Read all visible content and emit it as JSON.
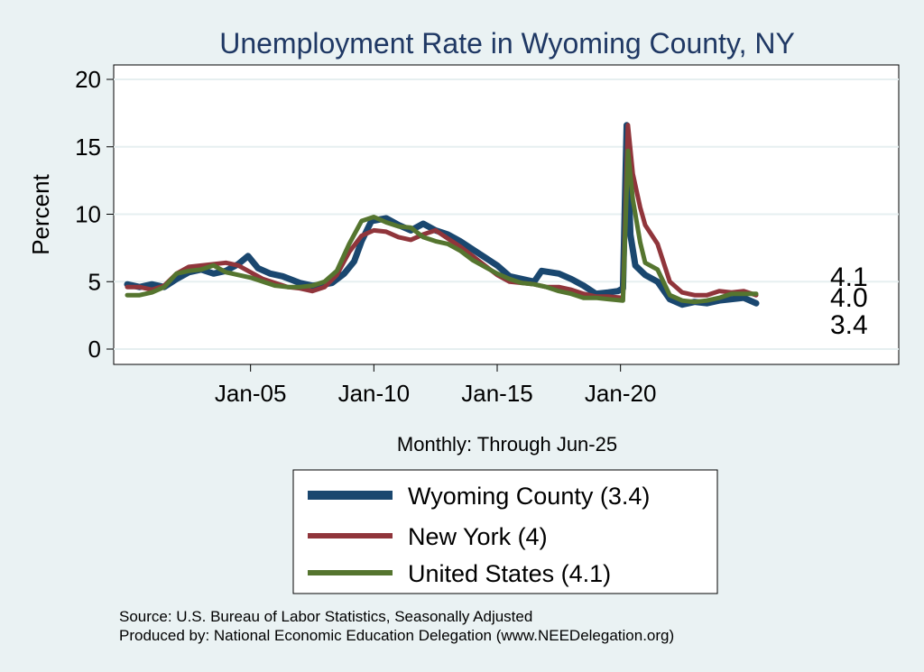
{
  "chart_data": {
    "type": "line",
    "title": "Unemployment Rate in Wyoming  County, NY",
    "ylabel": "Percent",
    "xlabel": "Monthly: Through Jun-25",
    "ylim": [
      0,
      20
    ],
    "yticks": [
      0,
      5,
      10,
      15,
      20
    ],
    "xlim": [
      2000.0,
      2028.5
    ],
    "xticks": [
      {
        "label": "Jan-05",
        "value": 2005.0
      },
      {
        "label": "Jan-10",
        "value": 2010.0
      },
      {
        "label": "Jan-15",
        "value": 2015.0
      },
      {
        "label": "Jan-20",
        "value": 2020.0
      }
    ],
    "grid": true,
    "legend_position": "bottom",
    "series": [
      {
        "name": "Wyoming  County (3.4)",
        "color": "#1a476f",
        "end_label": "3.4",
        "points": [
          [
            2000.0,
            4.8
          ],
          [
            2000.5,
            4.6
          ],
          [
            2001.0,
            4.8
          ],
          [
            2001.5,
            4.6
          ],
          [
            2002.0,
            5.2
          ],
          [
            2002.5,
            5.7
          ],
          [
            2003.0,
            5.9
          ],
          [
            2003.5,
            5.6
          ],
          [
            2004.0,
            5.8
          ],
          [
            2004.5,
            6.3
          ],
          [
            2004.9,
            6.9
          ],
          [
            2005.3,
            6.0
          ],
          [
            2005.8,
            5.6
          ],
          [
            2006.3,
            5.4
          ],
          [
            2007.0,
            4.9
          ],
          [
            2007.5,
            4.7
          ],
          [
            2008.0,
            4.8
          ],
          [
            2008.3,
            4.9
          ],
          [
            2008.8,
            5.6
          ],
          [
            2009.2,
            6.5
          ],
          [
            2009.5,
            8.0
          ],
          [
            2009.9,
            9.5
          ],
          [
            2010.5,
            9.7
          ],
          [
            2011.0,
            9.2
          ],
          [
            2011.5,
            8.8
          ],
          [
            2012.0,
            9.3
          ],
          [
            2012.5,
            8.8
          ],
          [
            2013.0,
            8.5
          ],
          [
            2013.5,
            8.0
          ],
          [
            2014.0,
            7.4
          ],
          [
            2014.5,
            6.8
          ],
          [
            2015.0,
            6.2
          ],
          [
            2015.5,
            5.4
          ],
          [
            2016.0,
            5.2
          ],
          [
            2016.5,
            5.0
          ],
          [
            2016.8,
            5.8
          ],
          [
            2017.5,
            5.6
          ],
          [
            2018.0,
            5.2
          ],
          [
            2018.5,
            4.7
          ],
          [
            2019.0,
            4.1
          ],
          [
            2019.5,
            4.2
          ],
          [
            2019.9,
            4.3
          ],
          [
            2020.1,
            4.5
          ],
          [
            2020.25,
            16.6
          ],
          [
            2020.4,
            8.5
          ],
          [
            2020.6,
            6.2
          ],
          [
            2021.0,
            5.5
          ],
          [
            2021.5,
            5.0
          ],
          [
            2022.0,
            3.7
          ],
          [
            2022.5,
            3.3
          ],
          [
            2023.0,
            3.5
          ],
          [
            2023.5,
            3.4
          ],
          [
            2024.0,
            3.6
          ],
          [
            2024.5,
            3.7
          ],
          [
            2025.0,
            3.8
          ],
          [
            2025.5,
            3.4
          ]
        ]
      },
      {
        "name": "New York (4)",
        "color": "#90353b",
        "end_label": "4.0",
        "points": [
          [
            2000.0,
            4.6
          ],
          [
            2000.5,
            4.6
          ],
          [
            2001.0,
            4.4
          ],
          [
            2001.5,
            4.7
          ],
          [
            2002.0,
            5.6
          ],
          [
            2002.5,
            6.1
          ],
          [
            2003.0,
            6.2
          ],
          [
            2003.5,
            6.3
          ],
          [
            2004.0,
            6.4
          ],
          [
            2004.5,
            6.2
          ],
          [
            2005.0,
            5.7
          ],
          [
            2005.5,
            5.2
          ],
          [
            2006.0,
            4.9
          ],
          [
            2006.5,
            4.6
          ],
          [
            2007.0,
            4.5
          ],
          [
            2007.5,
            4.3
          ],
          [
            2008.0,
            4.6
          ],
          [
            2008.5,
            5.5
          ],
          [
            2009.0,
            7.2
          ],
          [
            2009.5,
            8.4
          ],
          [
            2010.0,
            8.8
          ],
          [
            2010.5,
            8.7
          ],
          [
            2011.0,
            8.3
          ],
          [
            2011.5,
            8.1
          ],
          [
            2012.0,
            8.5
          ],
          [
            2012.5,
            8.8
          ],
          [
            2013.0,
            8.2
          ],
          [
            2013.5,
            7.6
          ],
          [
            2014.0,
            6.9
          ],
          [
            2014.5,
            6.2
          ],
          [
            2015.0,
            5.5
          ],
          [
            2015.5,
            5.0
          ],
          [
            2016.0,
            4.9
          ],
          [
            2016.5,
            4.8
          ],
          [
            2017.0,
            4.6
          ],
          [
            2017.5,
            4.6
          ],
          [
            2018.0,
            4.4
          ],
          [
            2018.5,
            4.1
          ],
          [
            2019.0,
            3.9
          ],
          [
            2019.5,
            3.9
          ],
          [
            2020.1,
            3.8
          ],
          [
            2020.3,
            16.6
          ],
          [
            2020.5,
            13.0
          ],
          [
            2020.8,
            10.5
          ],
          [
            2021.0,
            9.2
          ],
          [
            2021.5,
            7.8
          ],
          [
            2022.0,
            5.0
          ],
          [
            2022.5,
            4.2
          ],
          [
            2023.0,
            4.0
          ],
          [
            2023.5,
            4.0
          ],
          [
            2024.0,
            4.3
          ],
          [
            2024.5,
            4.2
          ],
          [
            2025.0,
            4.3
          ],
          [
            2025.5,
            4.0
          ]
        ]
      },
      {
        "name": "United States (4.1)",
        "color": "#55752f",
        "end_label": "4.1",
        "points": [
          [
            2000.0,
            4.0
          ],
          [
            2000.5,
            4.0
          ],
          [
            2001.0,
            4.2
          ],
          [
            2001.5,
            4.6
          ],
          [
            2002.0,
            5.6
          ],
          [
            2002.5,
            5.8
          ],
          [
            2003.0,
            5.9
          ],
          [
            2003.5,
            6.2
          ],
          [
            2004.0,
            5.7
          ],
          [
            2004.5,
            5.5
          ],
          [
            2005.0,
            5.3
          ],
          [
            2005.5,
            5.0
          ],
          [
            2006.0,
            4.7
          ],
          [
            2006.5,
            4.6
          ],
          [
            2007.0,
            4.6
          ],
          [
            2007.5,
            4.7
          ],
          [
            2008.0,
            5.0
          ],
          [
            2008.5,
            5.8
          ],
          [
            2009.0,
            7.8
          ],
          [
            2009.5,
            9.5
          ],
          [
            2010.0,
            9.8
          ],
          [
            2010.5,
            9.4
          ],
          [
            2011.0,
            9.1
          ],
          [
            2011.5,
            9.0
          ],
          [
            2012.0,
            8.3
          ],
          [
            2012.5,
            8.0
          ],
          [
            2013.0,
            7.8
          ],
          [
            2013.5,
            7.3
          ],
          [
            2014.0,
            6.6
          ],
          [
            2014.5,
            6.1
          ],
          [
            2015.0,
            5.6
          ],
          [
            2015.5,
            5.2
          ],
          [
            2016.0,
            4.9
          ],
          [
            2016.5,
            4.8
          ],
          [
            2017.0,
            4.6
          ],
          [
            2017.5,
            4.3
          ],
          [
            2018.0,
            4.1
          ],
          [
            2018.5,
            3.8
          ],
          [
            2019.0,
            3.8
          ],
          [
            2019.5,
            3.7
          ],
          [
            2020.1,
            3.6
          ],
          [
            2020.3,
            14.7
          ],
          [
            2020.5,
            11.1
          ],
          [
            2020.8,
            7.9
          ],
          [
            2021.0,
            6.4
          ],
          [
            2021.5,
            5.9
          ],
          [
            2022.0,
            4.0
          ],
          [
            2022.5,
            3.6
          ],
          [
            2023.0,
            3.5
          ],
          [
            2023.5,
            3.6
          ],
          [
            2024.0,
            3.8
          ],
          [
            2024.5,
            4.1
          ],
          [
            2025.0,
            4.1
          ],
          [
            2025.5,
            4.1
          ]
        ]
      }
    ]
  },
  "footer": {
    "source": "Source: U.S. Bureau of Labor Statistics, Seasonally Adjusted",
    "produced_by": "Produced by: National Economic Education Delegation (www.NEEDelegation.org)"
  }
}
